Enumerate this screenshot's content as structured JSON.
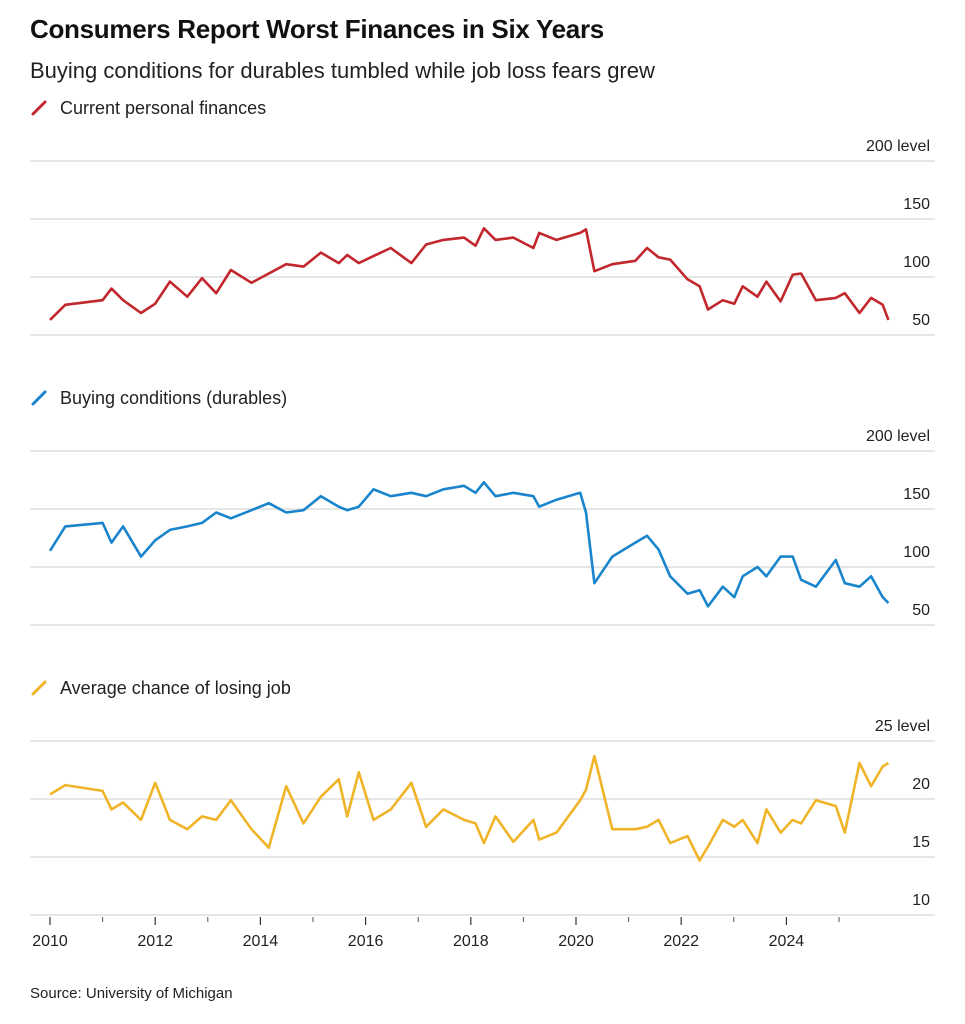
{
  "title": "Consumers Report Worst Finances in Six Years",
  "subtitle": "Buying conditions for durables tumbled while job loss fears grew",
  "source": "Source: University of Michigan",
  "chart_data": [
    {
      "type": "line",
      "legend": "Current personal finances",
      "color": "#c1272d",
      "yticks": [
        "200 level",
        "150",
        "100",
        "50"
      ],
      "ytick_values": [
        200,
        150,
        100,
        50
      ],
      "ylim": [
        50,
        200
      ],
      "x": [
        2010.0,
        2010.29,
        2011.0,
        2011.17,
        2011.39,
        2011.73,
        2012.0,
        2012.28,
        2012.61,
        2012.89,
        2013.16,
        2013.44,
        2013.83,
        2014.16,
        2014.49,
        2014.82,
        2015.15,
        2015.49,
        2015.65,
        2015.87,
        2016.15,
        2016.48,
        2016.87,
        2017.15,
        2017.48,
        2017.87,
        2018.09,
        2018.25,
        2018.47,
        2018.81,
        2019.19,
        2019.3,
        2019.63,
        2020.08,
        2020.19,
        2020.35,
        2020.69,
        2021.13,
        2021.35,
        2021.57,
        2021.79,
        2022.12,
        2022.35,
        2022.51,
        2022.79,
        2023.01,
        2023.17,
        2023.45,
        2023.62,
        2023.89,
        2024.12,
        2024.28,
        2024.56,
        2024.94,
        2025.11,
        2025.39,
        2025.61,
        2025.83,
        2025.94
      ],
      "values": [
        63,
        76,
        80,
        90,
        80,
        69,
        77,
        96,
        83,
        99,
        86,
        106,
        95,
        103,
        111,
        109,
        121,
        112,
        119,
        112,
        118,
        125,
        112,
        128,
        132,
        134,
        127,
        142,
        132,
        134,
        125,
        138,
        132,
        138,
        141,
        105,
        111,
        114,
        125,
        117,
        115,
        98,
        92,
        72,
        80,
        77,
        92,
        83,
        96,
        79,
        102,
        103,
        80,
        82,
        86,
        69,
        82,
        76,
        63
      ]
    },
    {
      "type": "line",
      "legend": "Buying conditions (durables)",
      "color": "#1a85cc",
      "yticks": [
        "200 level",
        "150",
        "100",
        "50"
      ],
      "ytick_values": [
        200,
        150,
        100,
        50
      ],
      "ylim": [
        50,
        200
      ],
      "values": [
        114,
        135,
        138,
        121,
        135,
        109,
        123,
        132,
        135,
        138,
        147,
        142,
        149,
        155,
        147,
        149,
        161,
        152,
        149,
        152,
        167,
        161,
        164,
        161,
        167,
        170,
        164,
        173,
        161,
        164,
        161,
        152,
        158,
        164,
        147,
        86,
        109,
        121,
        127,
        115,
        92,
        77,
        80,
        66,
        83,
        74,
        92,
        100,
        92,
        109,
        109,
        89,
        83,
        106,
        86,
        83,
        92,
        74,
        69
      ]
    },
    {
      "type": "line",
      "legend": "Average chance of losing job",
      "color": "#f0b429",
      "yticks": [
        "25 level",
        "20",
        "15",
        "10"
      ],
      "ytick_values": [
        25,
        20,
        15,
        10
      ],
      "ylim": [
        10,
        25
      ],
      "values": [
        20.4,
        21.2,
        20.7,
        19.1,
        19.7,
        18.2,
        21.4,
        18.2,
        17.4,
        18.5,
        18.2,
        19.9,
        17.4,
        15.8,
        21.1,
        17.9,
        20.2,
        21.7,
        18.5,
        22.3,
        18.2,
        19.1,
        21.4,
        17.6,
        19.1,
        18.2,
        17.9,
        16.2,
        18.5,
        16.3,
        18.2,
        16.5,
        17.1,
        19.9,
        20.8,
        23.7,
        17.4,
        17.4,
        17.6,
        18.2,
        16.2,
        16.8,
        14.7,
        15.9,
        18.2,
        17.6,
        18.2,
        16.2,
        19.1,
        17.1,
        18.2,
        17.9,
        19.9,
        19.4,
        17.1,
        23.1,
        21.1,
        22.8,
        23.1
      ]
    }
  ],
  "xaxis": {
    "ticks": [
      "2010",
      "2012",
      "2014",
      "2016",
      "2018",
      "2020",
      "2022",
      "2024"
    ],
    "tick_values": [
      2010,
      2012,
      2014,
      2016,
      2018,
      2020,
      2022,
      2024
    ],
    "minor_tick_values": [
      2011,
      2013,
      2015,
      2017,
      2019,
      2021,
      2023,
      2025
    ]
  }
}
